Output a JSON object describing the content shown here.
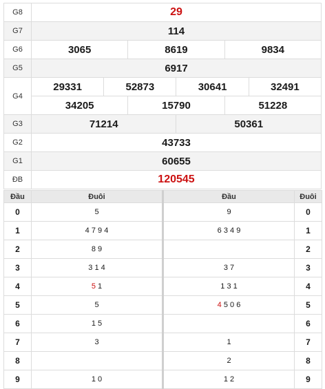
{
  "prizes": {
    "g8": {
      "label": "G8",
      "values": [
        "29"
      ]
    },
    "g7": {
      "label": "G7",
      "values": [
        "114"
      ]
    },
    "g6": {
      "label": "G6",
      "values": [
        "3065",
        "8619",
        "9834"
      ]
    },
    "g5": {
      "label": "G5",
      "values": [
        "6917"
      ]
    },
    "g4": {
      "label": "G4",
      "row1": [
        "29331",
        "52873",
        "30641",
        "32491"
      ],
      "row2": [
        "34205",
        "15790",
        "51228"
      ]
    },
    "g3": {
      "label": "G3",
      "values": [
        "71214",
        "50361"
      ]
    },
    "g2": {
      "label": "G2",
      "values": [
        "43733"
      ]
    },
    "g1": {
      "label": "G1",
      "values": [
        "60655"
      ]
    },
    "db": {
      "label": "ĐB",
      "values": [
        "120545"
      ]
    }
  },
  "loto": {
    "headers": {
      "dau_left": "Đầu",
      "duoi_left": "Đuôi",
      "dau_right": "Đầu",
      "duoi_right": "Đuôi"
    },
    "rows": [
      {
        "left_head": "0",
        "left_tails": {
          "hl": "",
          "rest": "5"
        },
        "right_heads": {
          "hl": "",
          "rest": "9"
        },
        "right_tail": "0"
      },
      {
        "left_head": "1",
        "left_tails": {
          "hl": "",
          "rest": "4 7 9 4"
        },
        "right_heads": {
          "hl": "",
          "rest": "6 3 4 9"
        },
        "right_tail": "1"
      },
      {
        "left_head": "2",
        "left_tails": {
          "hl": "",
          "rest": "8 9"
        },
        "right_heads": {
          "hl": "",
          "rest": ""
        },
        "right_tail": "2"
      },
      {
        "left_head": "3",
        "left_tails": {
          "hl": "",
          "rest": "3 1 4"
        },
        "right_heads": {
          "hl": "",
          "rest": "3 7"
        },
        "right_tail": "3"
      },
      {
        "left_head": "4",
        "left_tails": {
          "hl": "5",
          "rest": " 1"
        },
        "right_heads": {
          "hl": "",
          "rest": "1 3 1"
        },
        "right_tail": "4"
      },
      {
        "left_head": "5",
        "left_tails": {
          "hl": "",
          "rest": "5"
        },
        "right_heads": {
          "hl": "4",
          "rest": " 5 0 6"
        },
        "right_tail": "5"
      },
      {
        "left_head": "6",
        "left_tails": {
          "hl": "",
          "rest": "1 5"
        },
        "right_heads": {
          "hl": "",
          "rest": ""
        },
        "right_tail": "6"
      },
      {
        "left_head": "7",
        "left_tails": {
          "hl": "",
          "rest": "3"
        },
        "right_heads": {
          "hl": "",
          "rest": "1"
        },
        "right_tail": "7"
      },
      {
        "left_head": "8",
        "left_tails": {
          "hl": "",
          "rest": ""
        },
        "right_heads": {
          "hl": "",
          "rest": "2"
        },
        "right_tail": "8"
      },
      {
        "left_head": "9",
        "left_tails": {
          "hl": "",
          "rest": "1 0"
        },
        "right_heads": {
          "hl": "",
          "rest": "1 2"
        },
        "right_tail": "9"
      }
    ]
  },
  "colors": {
    "highlight": "#cc1111",
    "alt_row": "#f3f3f3",
    "header_bg": "#e9e9e9"
  }
}
